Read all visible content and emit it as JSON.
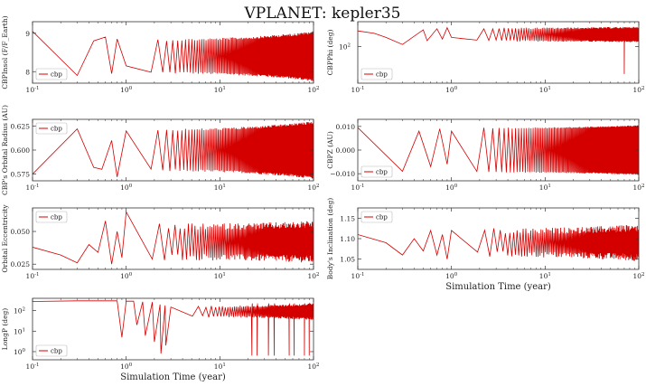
{
  "figure": {
    "title": "VPLANET: kepler35",
    "line_color": "#d40000",
    "xlabel": "Simulation Time (year)"
  },
  "chart_data": [
    {
      "type": "line",
      "name": "panel-1",
      "ylabel": "CBPInsol (F/F_Earth)",
      "xscale": "log",
      "xlim": [
        0.1,
        100
      ],
      "ylim": [
        7.7,
        9.3
      ],
      "yticks": [
        {
          "v": 8,
          "label": "8"
        },
        {
          "v": 9,
          "label": "9"
        }
      ],
      "xticks": [
        {
          "v": 0.1,
          "base": "10",
          "exp": "-1"
        },
        {
          "v": 1,
          "base": "10",
          "exp": "0"
        },
        {
          "v": 10,
          "base": "10",
          "exp": "1"
        },
        {
          "v": 100,
          "base": "10",
          "exp": "2"
        }
      ],
      "show_xlabel": false,
      "legend": {
        "position": "bottom-left",
        "label": "cbp"
      },
      "series": [
        {
          "name": "cbp",
          "x": [
            0.1,
            0.3,
            0.45,
            0.6,
            0.7,
            0.8,
            1.0
          ],
          "y": [
            9.05,
            7.9,
            8.8,
            8.9,
            7.95,
            8.85,
            8.15
          ]
        }
      ],
      "oscillation": {
        "start": 1.0,
        "end": 100,
        "center": 8.4,
        "amp_start": 0.45,
        "amp_end": 0.65,
        "cycles": 160,
        "jitter": 0.12
      }
    },
    {
      "type": "line",
      "name": "panel-2",
      "ylabel": "CBPPhi (deg)",
      "xscale": "log",
      "xlim": [
        0.1,
        100
      ],
      "yscale": "log",
      "ylim": [
        20,
        300
      ],
      "yticks": [
        {
          "v": 100,
          "label": "10",
          "exp": "2"
        }
      ],
      "xticks": [
        {
          "v": 0.1,
          "base": "10",
          "exp": "-1"
        },
        {
          "v": 1,
          "base": "10",
          "exp": "0"
        },
        {
          "v": 10,
          "base": "10",
          "exp": "1"
        },
        {
          "v": 100,
          "base": "10",
          "exp": "2"
        }
      ],
      "show_xlabel": false,
      "legend": {
        "position": "bottom-left",
        "label": "cbp"
      },
      "series": [
        {
          "name": "cbp",
          "x": [
            0.1,
            0.15,
            0.2,
            0.3,
            0.5,
            0.55,
            0.7,
            0.8,
            0.9,
            1.0
          ],
          "y": [
            200,
            180,
            150,
            110,
            210,
            130,
            220,
            140,
            230,
            150
          ]
        }
      ],
      "oscillation": {
        "start": 1.0,
        "end": 100,
        "center": 170,
        "amp_start": 60,
        "amp_end": 70,
        "cycles": 150,
        "jitter": 0.2,
        "spikes": [
          {
            "x": 70,
            "y": 30
          }
        ]
      }
    },
    {
      "type": "line",
      "name": "panel-3",
      "ylabel": "CBP's Orbital Radius (AU)",
      "xscale": "log",
      "xlim": [
        0.1,
        100
      ],
      "ylim": [
        0.568,
        0.632
      ],
      "yticks": [
        {
          "v": 0.575,
          "label": "0.575"
        },
        {
          "v": 0.6,
          "label": "0.600"
        },
        {
          "v": 0.625,
          "label": "0.625"
        }
      ],
      "xticks": [
        {
          "v": 0.1,
          "base": "10",
          "exp": "-1"
        },
        {
          "v": 1,
          "base": "10",
          "exp": "0"
        },
        {
          "v": 10,
          "base": "10",
          "exp": "1"
        },
        {
          "v": 100,
          "base": "10",
          "exp": "2"
        }
      ],
      "show_xlabel": false,
      "legend": {
        "position": "top-left",
        "label": "cbp"
      },
      "series": [
        {
          "name": "cbp",
          "x": [
            0.1,
            0.3,
            0.45,
            0.55,
            0.7,
            0.8,
            1.0
          ],
          "y": [
            0.575,
            0.622,
            0.582,
            0.58,
            0.61,
            0.572,
            0.62
          ]
        }
      ],
      "oscillation": {
        "start": 1.0,
        "end": 100,
        "center": 0.6,
        "amp_start": 0.022,
        "amp_end": 0.03,
        "cycles": 160,
        "jitter": 0.1
      }
    },
    {
      "type": "line",
      "name": "panel-4",
      "ylabel": "CBPZ (AU)",
      "xscale": "log",
      "xlim": [
        0.1,
        100
      ],
      "ylim": [
        -0.013,
        0.013
      ],
      "yticks": [
        {
          "v": -0.01,
          "label": "−0.010"
        },
        {
          "v": 0,
          "label": "0.000"
        },
        {
          "v": 0.01,
          "label": "0.010"
        }
      ],
      "xticks": [
        {
          "v": 0.1,
          "base": "10",
          "exp": "-1"
        },
        {
          "v": 1,
          "base": "10",
          "exp": "0"
        },
        {
          "v": 10,
          "base": "10",
          "exp": "1"
        },
        {
          "v": 100,
          "base": "10",
          "exp": "2"
        }
      ],
      "show_xlabel": false,
      "legend": {
        "position": "bottom-left",
        "label": "cbp"
      },
      "series": [
        {
          "name": "cbp",
          "x": [
            0.1,
            0.3,
            0.45,
            0.6,
            0.75,
            0.9,
            1.0
          ],
          "y": [
            0.0095,
            -0.009,
            0.008,
            -0.007,
            0.009,
            -0.006,
            0.008
          ]
        }
      ],
      "oscillation": {
        "start": 1.0,
        "end": 100,
        "center": 0.0,
        "amp_start": 0.0095,
        "amp_end": 0.0105,
        "cycles": 150,
        "jitter": 0.05
      }
    },
    {
      "type": "line",
      "name": "panel-5",
      "ylabel": "Orbital Eccentricity",
      "xscale": "log",
      "xlim": [
        0.1,
        100
      ],
      "ylim": [
        0.021,
        0.068
      ],
      "yticks": [
        {
          "v": 0.025,
          "label": "0.025"
        },
        {
          "v": 0.05,
          "label": "0.050"
        }
      ],
      "xticks": [
        {
          "v": 0.1,
          "base": "10",
          "exp": "-1"
        },
        {
          "v": 1,
          "base": "10",
          "exp": "0"
        },
        {
          "v": 10,
          "base": "10",
          "exp": "1"
        },
        {
          "v": 100,
          "base": "10",
          "exp": "2"
        }
      ],
      "show_xlabel": false,
      "legend": {
        "position": "top-left",
        "label": "cbp"
      },
      "series": [
        {
          "name": "cbp",
          "x": [
            0.1,
            0.2,
            0.3,
            0.4,
            0.5,
            0.6,
            0.7,
            0.8,
            0.9,
            1.0
          ],
          "y": [
            0.038,
            0.032,
            0.026,
            0.04,
            0.034,
            0.058,
            0.025,
            0.05,
            0.03,
            0.065
          ]
        }
      ],
      "oscillation": {
        "start": 1.0,
        "end": 100,
        "center": 0.042,
        "amp_start": 0.014,
        "amp_end": 0.016,
        "cycles": 140,
        "jitter": 0.35
      }
    },
    {
      "type": "line",
      "name": "panel-6",
      "ylabel": "Body's Inclination (deg)",
      "xscale": "log",
      "xlim": [
        0.1,
        100
      ],
      "ylim": [
        1.025,
        1.175
      ],
      "yticks": [
        {
          "v": 1.05,
          "label": "1.05"
        },
        {
          "v": 1.1,
          "label": "1.10"
        },
        {
          "v": 1.15,
          "label": "1.15"
        }
      ],
      "xticks": [
        {
          "v": 0.1,
          "base": "10",
          "exp": "-1"
        },
        {
          "v": 1,
          "base": "10",
          "exp": "0"
        },
        {
          "v": 10,
          "base": "10",
          "exp": "1"
        },
        {
          "v": 100,
          "base": "10",
          "exp": "2"
        }
      ],
      "show_xlabel": true,
      "legend": {
        "position": "top-left",
        "label": "cbp"
      },
      "series": [
        {
          "name": "cbp",
          "x": [
            0.1,
            0.2,
            0.3,
            0.4,
            0.5,
            0.6,
            0.7,
            0.8,
            0.9,
            1.0
          ],
          "y": [
            1.11,
            1.09,
            1.06,
            1.1,
            1.07,
            1.12,
            1.06,
            1.11,
            1.05,
            1.12
          ]
        }
      ],
      "oscillation": {
        "start": 1.0,
        "end": 100,
        "center": 1.09,
        "amp_start": 0.035,
        "amp_end": 0.045,
        "cycles": 140,
        "jitter": 0.4
      }
    },
    {
      "type": "line",
      "name": "panel-7",
      "ylabel": "LongP (deg)",
      "xscale": "log",
      "xlim": [
        0.1,
        100
      ],
      "yscale": "log",
      "ylim": [
        0.4,
        400
      ],
      "yticks": [
        {
          "v": 1,
          "label": "10",
          "exp": "0"
        },
        {
          "v": 10,
          "label": "10",
          "exp": "1"
        },
        {
          "v": 100,
          "label": "10",
          "exp": "2"
        }
      ],
      "xticks": [
        {
          "v": 0.1,
          "base": "10",
          "exp": "-1"
        },
        {
          "v": 1,
          "base": "10",
          "exp": "0"
        },
        {
          "v": 10,
          "base": "10",
          "exp": "1"
        },
        {
          "v": 100,
          "base": "10",
          "exp": "2"
        }
      ],
      "show_xlabel": true,
      "legend": {
        "position": "bottom-left",
        "label": "cbp"
      },
      "series": [
        {
          "name": "cbp",
          "x": [
            0.1,
            0.3,
            0.8,
            0.9,
            1.0,
            1.2,
            1.3,
            1.5,
            1.6,
            1.9,
            2.0,
            2.3,
            2.35,
            2.6,
            2.65,
            3.0
          ],
          "y": [
            280,
            300,
            300,
            5,
            290,
            290,
            20,
            270,
            6,
            260,
            3,
            200,
            0.8,
            180,
            2,
            150
          ]
        }
      ],
      "oscillation": {
        "start": 3.0,
        "end": 100,
        "center": 90,
        "amp_start": 80,
        "amp_end": 140,
        "cycles": 110,
        "jitter": 0.3,
        "dips": [
          22,
          25,
          33,
          38,
          55,
          62,
          80,
          90
        ]
      }
    }
  ]
}
